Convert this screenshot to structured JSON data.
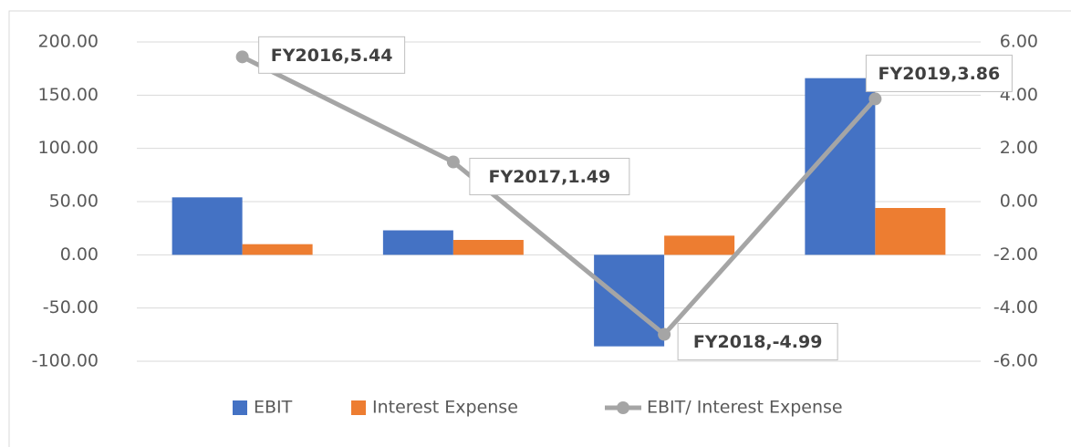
{
  "chart_data": {
    "type": "bar",
    "categories": [
      null,
      null,
      null,
      null
    ],
    "series": [
      {
        "name": "EBIT",
        "color": "#4472c4",
        "values": [
          54,
          23,
          -86,
          166
        ]
      },
      {
        "name": "Interest Expense",
        "color": "#ed7d31",
        "values": [
          10,
          14,
          18,
          44
        ]
      },
      {
        "name": "EBIT/ Interest Expense",
        "color": "#a5a5a5",
        "type": "line",
        "axis": "y2",
        "values": [
          5.44,
          1.49,
          -4.99,
          3.86
        ],
        "value_labels": [
          "FY2016,5.44",
          "FY2017,1.49",
          "FY2018,-4.99",
          "FY2019,3.86"
        ]
      }
    ],
    "ylim": [
      -100,
      200
    ],
    "yticks": [
      {
        "value": -100,
        "label": "-100.00"
      },
      {
        "value": -50,
        "label": "-50.00"
      },
      {
        "value": 0,
        "label": "0.00"
      },
      {
        "value": 50,
        "label": "50.00"
      },
      {
        "value": 100,
        "label": "100.00"
      },
      {
        "value": 150,
        "label": "150.00"
      },
      {
        "value": 200,
        "label": "200.00"
      }
    ],
    "y2lim": [
      -6,
      6
    ],
    "y2ticks": [
      {
        "value": -6,
        "label": "-6.00"
      },
      {
        "value": -4,
        "label": "-4.00"
      },
      {
        "value": -2,
        "label": "-2.00"
      },
      {
        "value": 0,
        "label": "0.00"
      },
      {
        "value": 2,
        "label": "2.00"
      },
      {
        "value": 4,
        "label": "4.00"
      },
      {
        "value": 6,
        "label": "6.00"
      }
    ],
    "grid": true,
    "legend": "bottom"
  }
}
